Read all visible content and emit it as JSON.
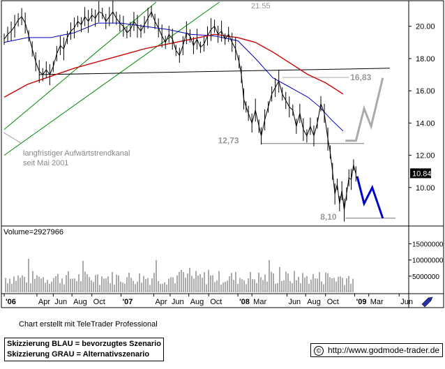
{
  "chart_data": {
    "type": "line",
    "subtype": "ohlc-price-chart-with-volume",
    "price_panel": {
      "ylim": [
        7.7,
        21.5
      ],
      "y_ticks": [
        10.0,
        12.0,
        14.0,
        16.0,
        18.0,
        20.0
      ],
      "y_tick_labels": [
        "10.00",
        "12.00",
        "14.00",
        "16.00",
        "18.00",
        "20.00"
      ],
      "top_label": "21.55",
      "current_price_label": "10.84",
      "current_price": 10.84,
      "annotations": [
        {
          "text": "16,83",
          "value": 16.83
        },
        {
          "text": "12,73",
          "value": 12.73
        },
        {
          "text": "8,10",
          "value": 8.1
        }
      ],
      "trend_channel_note": [
        "langfristiger Aufwärtstrendkanal",
        "seit Mai 2001"
      ],
      "price_series": [
        [
          2006.0,
          19.2
        ],
        [
          2006.03,
          19.5
        ],
        [
          2006.06,
          19.7
        ],
        [
          2006.09,
          20.0
        ],
        [
          2006.12,
          20.4
        ],
        [
          2006.15,
          20.6
        ],
        [
          2006.18,
          20.2
        ],
        [
          2006.21,
          19.4
        ],
        [
          2006.24,
          18.6
        ],
        [
          2006.27,
          17.8
        ],
        [
          2006.3,
          17.2
        ],
        [
          2006.33,
          17.0
        ],
        [
          2006.36,
          17.3
        ],
        [
          2006.39,
          17.0
        ],
        [
          2006.42,
          17.5
        ],
        [
          2006.45,
          18.3
        ],
        [
          2006.48,
          18.8
        ],
        [
          2006.51,
          18.6
        ],
        [
          2006.54,
          19.3
        ],
        [
          2006.57,
          19.7
        ],
        [
          2006.6,
          19.9
        ],
        [
          2006.63,
          20.3
        ],
        [
          2006.66,
          20.1
        ],
        [
          2006.69,
          20.6
        ],
        [
          2006.72,
          20.3
        ],
        [
          2006.75,
          20.7
        ],
        [
          2006.78,
          20.5
        ],
        [
          2006.81,
          20.9
        ],
        [
          2006.84,
          20.8
        ],
        [
          2006.87,
          20.3
        ],
        [
          2006.9,
          20.6
        ],
        [
          2006.93,
          20.9
        ],
        [
          2006.96,
          20.5
        ],
        [
          2006.99,
          20.2
        ],
        [
          2007.02,
          20.0
        ],
        [
          2007.05,
          19.6
        ],
        [
          2007.08,
          19.8
        ],
        [
          2007.11,
          20.3
        ],
        [
          2007.14,
          20.0
        ],
        [
          2007.17,
          19.7
        ],
        [
          2007.2,
          20.1
        ],
        [
          2007.23,
          20.5
        ],
        [
          2007.26,
          20.9
        ],
        [
          2007.29,
          20.3
        ],
        [
          2007.32,
          19.9
        ],
        [
          2007.35,
          19.4
        ],
        [
          2007.38,
          19.0
        ],
        [
          2007.41,
          19.5
        ],
        [
          2007.44,
          19.2
        ],
        [
          2007.47,
          18.5
        ],
        [
          2007.5,
          18.2
        ],
        [
          2007.53,
          18.8
        ],
        [
          2007.56,
          19.6
        ],
        [
          2007.59,
          19.4
        ],
        [
          2007.62,
          18.8
        ],
        [
          2007.65,
          19.2
        ],
        [
          2007.68,
          18.7
        ],
        [
          2007.71,
          18.9
        ],
        [
          2007.74,
          19.4
        ],
        [
          2007.77,
          19.8
        ],
        [
          2007.8,
          20.0
        ],
        [
          2007.83,
          19.5
        ],
        [
          2007.86,
          19.7
        ],
        [
          2007.89,
          19.2
        ],
        [
          2007.92,
          19.5
        ],
        [
          2007.95,
          19.0
        ],
        [
          2007.98,
          18.6
        ],
        [
          2008.01,
          17.8
        ],
        [
          2008.03,
          17.0
        ],
        [
          2008.05,
          15.5
        ],
        [
          2008.07,
          15.0
        ],
        [
          2008.09,
          14.6
        ],
        [
          2008.12,
          14.0
        ],
        [
          2008.15,
          14.8
        ],
        [
          2008.18,
          13.8
        ],
        [
          2008.2,
          13.2
        ],
        [
          2008.23,
          14.2
        ],
        [
          2008.26,
          15.0
        ],
        [
          2008.29,
          15.8
        ],
        [
          2008.32,
          16.2
        ],
        [
          2008.35,
          16.6
        ],
        [
          2008.38,
          15.8
        ],
        [
          2008.41,
          15.4
        ],
        [
          2008.44,
          15.0
        ],
        [
          2008.47,
          14.8
        ],
        [
          2008.5,
          13.8
        ],
        [
          2008.53,
          14.6
        ],
        [
          2008.56,
          13.6
        ],
        [
          2008.59,
          13.2
        ],
        [
          2008.62,
          13.8
        ],
        [
          2008.65,
          13.2
        ],
        [
          2008.68,
          14.0
        ],
        [
          2008.71,
          15.2
        ],
        [
          2008.74,
          14.6
        ],
        [
          2008.77,
          13.0
        ],
        [
          2008.79,
          12.2
        ],
        [
          2008.81,
          11.0
        ],
        [
          2008.83,
          9.6
        ],
        [
          2008.85,
          10.2
        ],
        [
          2008.87,
          9.0
        ],
        [
          2008.89,
          9.8
        ],
        [
          2008.91,
          8.6
        ],
        [
          2008.93,
          9.6
        ],
        [
          2008.95,
          10.6
        ],
        [
          2008.97,
          10.5
        ],
        [
          2008.99,
          11.4
        ],
        [
          2009.01,
          10.84
        ]
      ],
      "sma_short_blue": [
        [
          2006.0,
          19.0
        ],
        [
          2006.2,
          19.3
        ],
        [
          2006.4,
          19.3
        ],
        [
          2006.6,
          19.6
        ],
        [
          2006.8,
          20.2
        ],
        [
          2007.0,
          20.2
        ],
        [
          2007.2,
          20.0
        ],
        [
          2007.4,
          19.8
        ],
        [
          2007.6,
          19.5
        ],
        [
          2007.8,
          19.4
        ],
        [
          2008.0,
          19.1
        ],
        [
          2008.15,
          18.0
        ],
        [
          2008.3,
          16.8
        ],
        [
          2008.45,
          16.2
        ],
        [
          2008.6,
          15.6
        ],
        [
          2008.7,
          15.0
        ],
        [
          2008.8,
          14.2
        ],
        [
          2008.9,
          13.5
        ]
      ],
      "sma_long_red": [
        [
          2006.0,
          15.6
        ],
        [
          2006.2,
          16.4
        ],
        [
          2006.4,
          16.9
        ],
        [
          2006.6,
          17.4
        ],
        [
          2006.8,
          17.8
        ],
        [
          2007.0,
          18.2
        ],
        [
          2007.2,
          18.6
        ],
        [
          2007.4,
          18.9
        ],
        [
          2007.6,
          19.2
        ],
        [
          2007.8,
          19.5
        ],
        [
          2008.0,
          19.3
        ],
        [
          2008.15,
          19.0
        ],
        [
          2008.3,
          18.4
        ],
        [
          2008.45,
          17.7
        ],
        [
          2008.6,
          17.0
        ],
        [
          2008.75,
          16.5
        ],
        [
          2008.9,
          15.8
        ]
      ],
      "upper_channel_green": [
        [
          2006.0,
          13.6
        ],
        [
          2007.35,
          21.8
        ]
      ],
      "lower_channel_green": [
        [
          2006.0,
          12.0
        ],
        [
          2007.9,
          21.8
        ]
      ],
      "support_line_black": [
        [
          2006.3,
          17.0
        ],
        [
          2009.3,
          17.4
        ]
      ],
      "neckline_1273": [
        [
          2008.2,
          12.73
        ],
        [
          2009.08,
          12.73
        ]
      ],
      "level_1683": [
        [
          2008.38,
          16.83
        ],
        [
          2008.95,
          16.83
        ]
      ],
      "level_810": [
        [
          2008.92,
          8.1
        ],
        [
          2009.35,
          8.1
        ]
      ],
      "scenario_blue": [
        [
          2009.02,
          10.7
        ],
        [
          2009.08,
          9.0
        ],
        [
          2009.15,
          10.0
        ],
        [
          2009.24,
          8.1
        ]
      ],
      "scenario_grey": [
        [
          2008.92,
          12.9
        ],
        [
          2009.01,
          12.9
        ],
        [
          2009.08,
          14.9
        ],
        [
          2009.14,
          13.8
        ],
        [
          2009.24,
          16.8
        ]
      ]
    },
    "volume_panel": {
      "title": "Volume=2927966",
      "ylim": [
        0,
        17500000
      ],
      "y_ticks": [
        5000000,
        10000000,
        15000000
      ],
      "y_tick_labels": [
        "5000000",
        "10000000",
        "15000000"
      ],
      "typical_volume": 5000000,
      "peaks": [
        [
          2006.52,
          16000000
        ],
        [
          2008.06,
          17500000
        ],
        [
          2007.3,
          10000000
        ]
      ]
    },
    "x_axis": {
      "xlim": [
        2006.0,
        2009.45
      ],
      "ticks": [
        {
          "x": 2006.0,
          "label": "'06",
          "bold": true
        },
        {
          "x": 2006.28,
          "label": "Apr",
          "bold": false
        },
        {
          "x": 2006.42,
          "label": "Jun",
          "bold": false
        },
        {
          "x": 2006.58,
          "label": "Aug",
          "bold": false
        },
        {
          "x": 2006.75,
          "label": "Oct",
          "bold": false
        },
        {
          "x": 2007.0,
          "label": "'07",
          "bold": true
        },
        {
          "x": 2007.28,
          "label": "Apr",
          "bold": false
        },
        {
          "x": 2007.42,
          "label": "Jun",
          "bold": false
        },
        {
          "x": 2007.58,
          "label": "Aug",
          "bold": false
        },
        {
          "x": 2007.75,
          "label": "Oct",
          "bold": false
        },
        {
          "x": 2008.0,
          "label": "'08",
          "bold": true
        },
        {
          "x": 2008.12,
          "label": "Mar",
          "bold": false
        },
        {
          "x": 2008.42,
          "label": "Jun",
          "bold": false
        },
        {
          "x": 2008.58,
          "label": "Aug",
          "bold": false
        },
        {
          "x": 2008.75,
          "label": "Oct",
          "bold": false
        },
        {
          "x": 2009.0,
          "label": "'09",
          "bold": true
        },
        {
          "x": 2009.12,
          "label": "Mar",
          "bold": false
        },
        {
          "x": 2009.38,
          "label": "Jun",
          "bold": false
        }
      ]
    },
    "colors": {
      "price": "#000000",
      "sma_short": "#0000cc",
      "sma_long": "#cc0000",
      "channel": "#008800",
      "scenario_preferred": "#0000cc",
      "scenario_alternative": "#aaaaaa",
      "level_text": "#999999"
    }
  },
  "footer": {
    "credit": "Chart erstellt mit TeleTrader Professional",
    "legend_line1": "Skizzierung BLAU = bevorzugtes Szenario",
    "legend_line2": "Skizzierung GRAU = Alternativszenario",
    "copyright_symbol": "©",
    "url": "http://www.godmode-trader.de"
  }
}
